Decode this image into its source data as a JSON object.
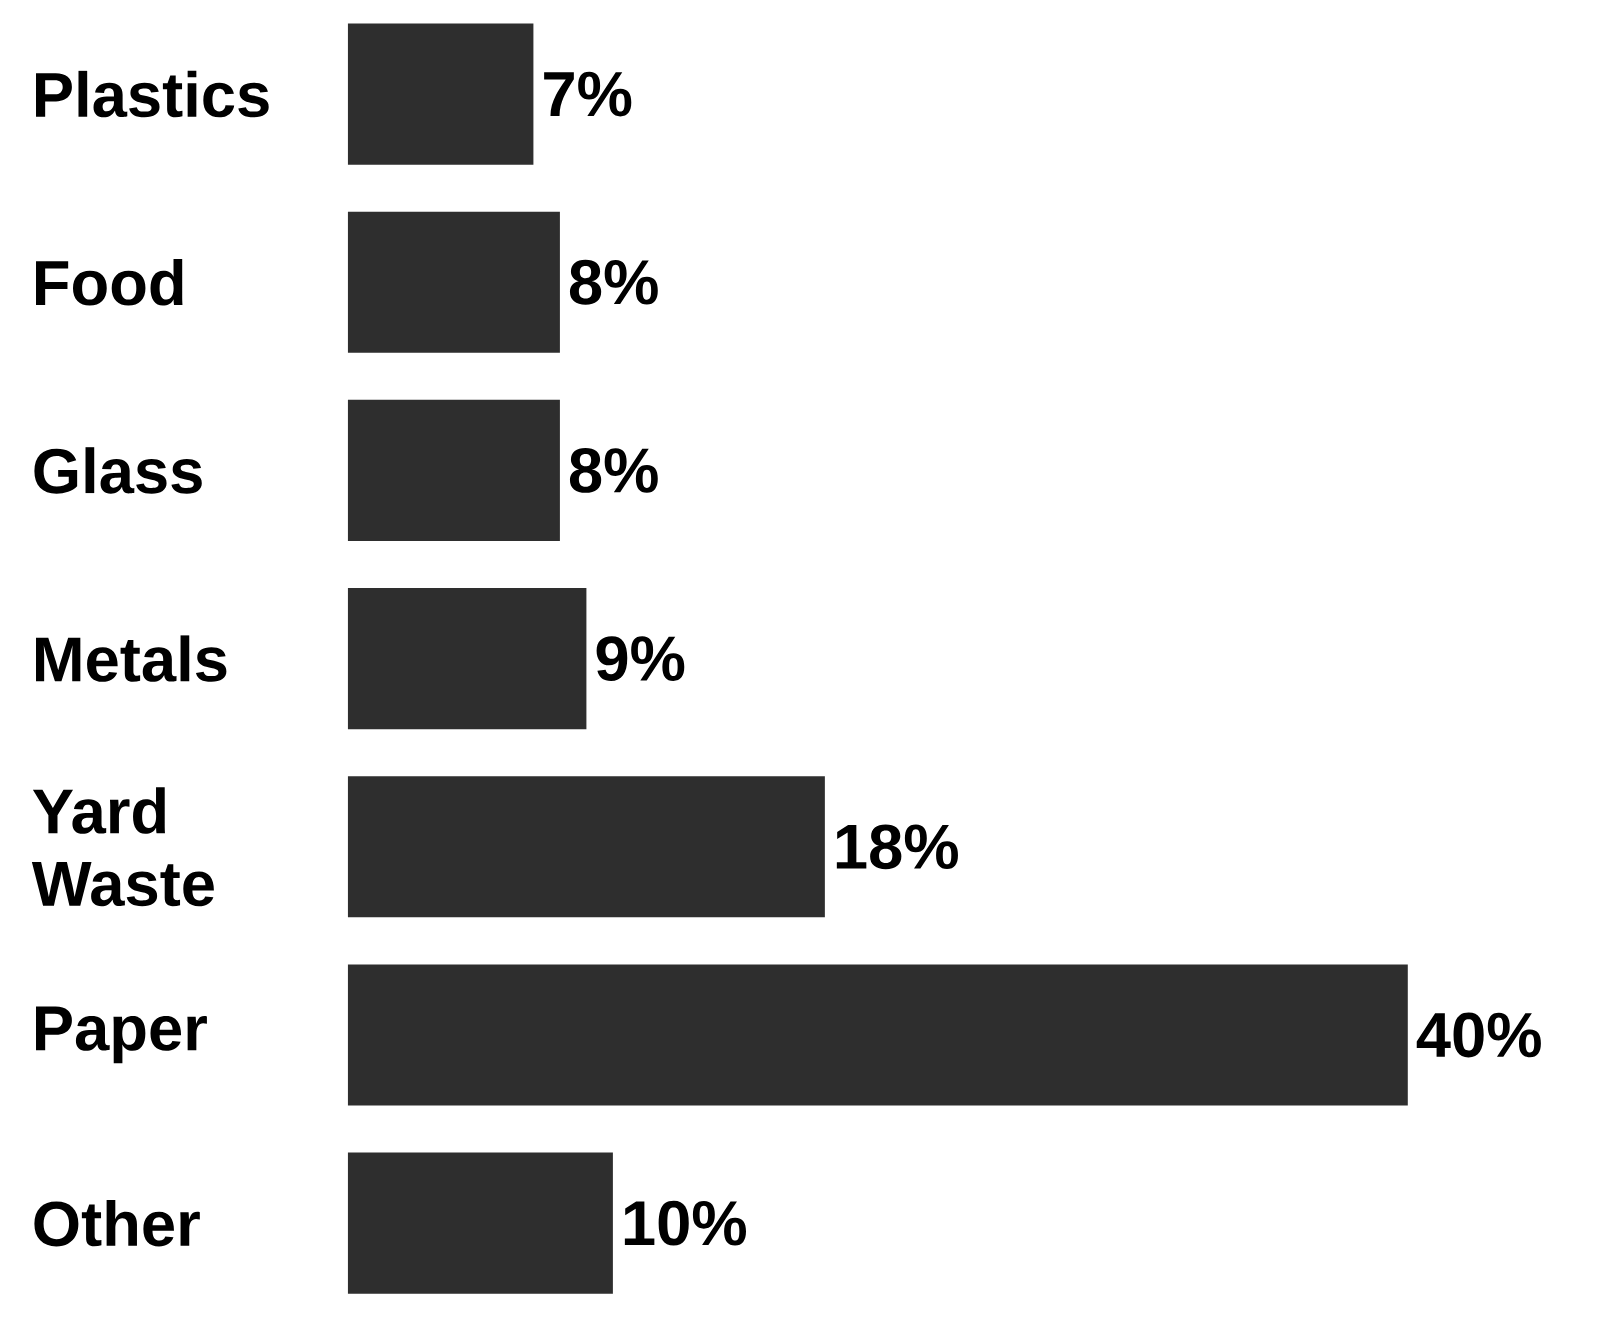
{
  "chart_data": {
    "type": "bar",
    "orientation": "horizontal",
    "categories": [
      "Plastics",
      "Food",
      "Glass",
      "Metals",
      "Yard Waste",
      "Paper",
      "Other"
    ],
    "values": [
      7,
      8,
      8,
      9,
      18,
      40,
      10
    ],
    "value_labels": [
      "7%",
      "8%",
      "8%",
      "9%",
      "18%",
      "40%",
      "10%"
    ],
    "color": "#2e2e2e"
  }
}
